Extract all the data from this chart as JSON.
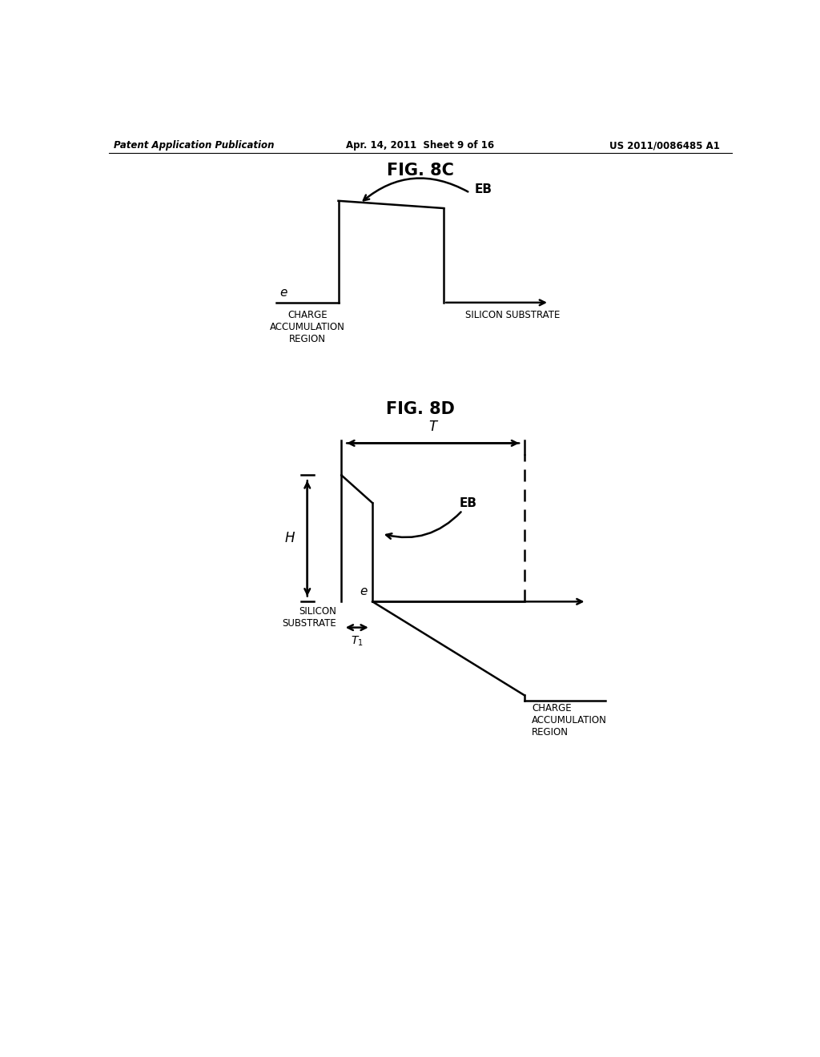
{
  "background_color": "#ffffff",
  "header_left": "Patent Application Publication",
  "header_center": "Apr. 14, 2011  Sheet 9 of 16",
  "header_right": "US 2011/0086485 A1",
  "fig8c_title": "FIG. 8C",
  "fig8d_title": "FIG. 8D",
  "line_color": "#000000",
  "text_color": "#000000"
}
